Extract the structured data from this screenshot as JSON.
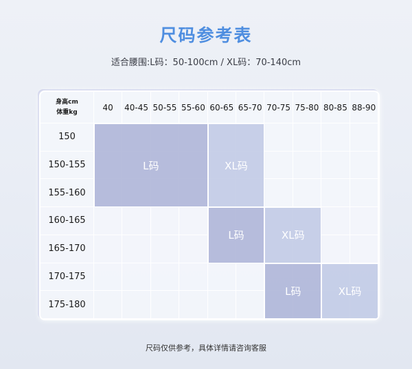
{
  "title": "尺码参考表",
  "subtitle": "适合腰围:L码：50-100cm / XL码：70-140cm",
  "table": {
    "corner_top": "身高cm",
    "corner_bottom": "体重kg",
    "columns": [
      "40",
      "40-45",
      "50-55",
      "55-60",
      "60-65",
      "65-70",
      "70-75",
      "75-80",
      "80-85",
      "88-90"
    ],
    "rows": [
      "150",
      "150-155",
      "155-160",
      "160-165",
      "165-170",
      "170-175",
      "175-180"
    ],
    "blocks": [
      {
        "label": "L码",
        "size": "L",
        "rows": [
          0,
          2
        ],
        "cols": [
          0,
          3
        ]
      },
      {
        "label": "XL码",
        "size": "XL",
        "rows": [
          0,
          2
        ],
        "cols": [
          4,
          5
        ]
      },
      {
        "label": "L码",
        "size": "L",
        "rows": [
          3,
          4
        ],
        "cols": [
          4,
          5
        ]
      },
      {
        "label": "XL码",
        "size": "XL",
        "rows": [
          3,
          4
        ],
        "cols": [
          6,
          7
        ]
      },
      {
        "label": "L码",
        "size": "L",
        "rows": [
          5,
          6
        ],
        "cols": [
          6,
          7
        ]
      },
      {
        "label": "XL码",
        "size": "XL",
        "rows": [
          5,
          6
        ],
        "cols": [
          8,
          9
        ]
      }
    ]
  },
  "footer": "尺码仅供参考，具体详情请咨询客服",
  "colors": {
    "title": "#4f8ee0",
    "L_block": "#aab2d6",
    "XL_block": "#bec8e4"
  }
}
